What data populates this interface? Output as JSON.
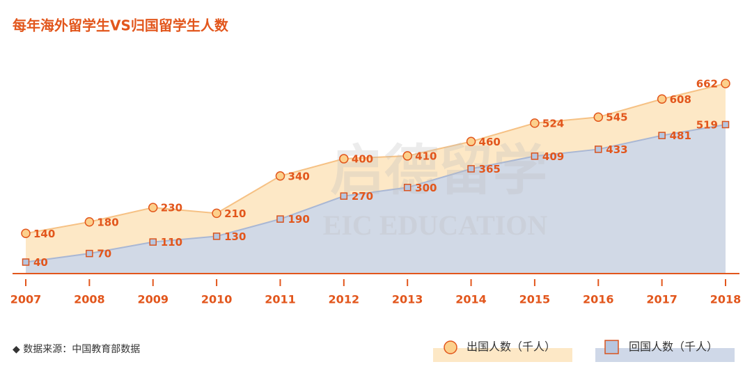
{
  "chart_data": {
    "type": "area",
    "title": "每年海外留学生VS归国留学生人数",
    "watermark": [
      "启德留学",
      "EIC EDUCATION"
    ],
    "source": "◆ 数据来源：中国教育部数据",
    "categories": [
      "2007",
      "2008",
      "2009",
      "2010",
      "2011",
      "2012",
      "2013",
      "2014",
      "2015",
      "2016",
      "2017",
      "2018"
    ],
    "series": [
      {
        "name": "出国人数（千人）",
        "color": "#fde8c6",
        "marker": "circle",
        "values": [
          140,
          180,
          230,
          210,
          340,
          400,
          410,
          460,
          524,
          545,
          608,
          662
        ]
      },
      {
        "name": "回国人数（千人）",
        "color": "#cfd8e8",
        "marker": "square",
        "values": [
          40,
          70,
          110,
          130,
          190,
          270,
          300,
          365,
          409,
          433,
          481,
          519
        ]
      }
    ]
  }
}
